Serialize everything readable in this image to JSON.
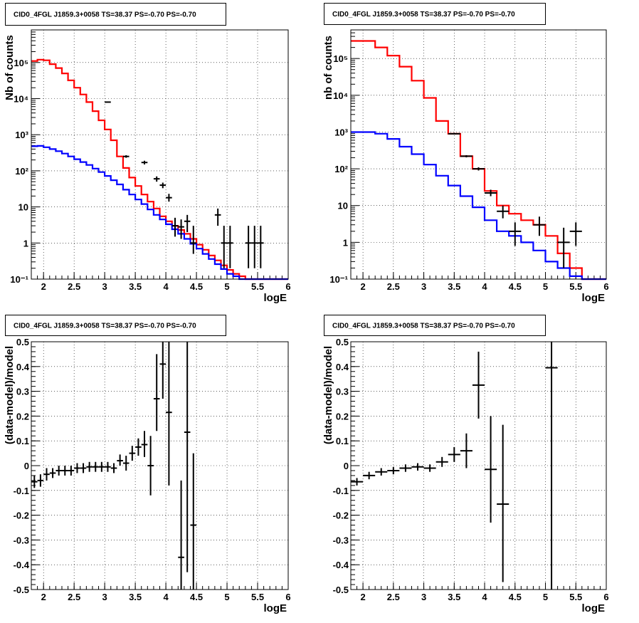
{
  "colors": {
    "data": "#000000",
    "model_total": "#ff0000",
    "model_source": "#0000ff",
    "grid": "#000000",
    "background": "#ffffff"
  },
  "chart_data": [
    {
      "type": "line",
      "title": "CID0_4FGL J1859.3+0058 TS=38.37 PS=-0.70 PS=-0.70",
      "xlabel": "logE",
      "ylabel": "Nb of counts",
      "xlim": [
        1.8,
        6.0
      ],
      "ylim": [
        0.1,
        800000
      ],
      "yscale": "log",
      "grid": true,
      "xticks": [
        "2",
        "2.5",
        "3",
        "3.5",
        "4",
        "4.5",
        "5",
        "5.5",
        "6"
      ],
      "yticks": [
        "10⁻¹",
        "1",
        "10",
        "10²",
        "10³",
        "10⁴",
        "10⁵"
      ],
      "bin_width": 0.1,
      "series": [
        {
          "kind": "step",
          "color": "#ff0000",
          "x": [
            1.8,
            1.9,
            2.0,
            2.1,
            2.2,
            2.3,
            2.4,
            2.5,
            2.6,
            2.7,
            2.8,
            2.9,
            3.0,
            3.1,
            3.2,
            3.3,
            3.4,
            3.5,
            3.6,
            3.7,
            3.8,
            3.9,
            4.0,
            4.1,
            4.2,
            4.3,
            4.4,
            4.5,
            4.6,
            4.7,
            4.8,
            4.9,
            5.0,
            5.1,
            5.2,
            5.3,
            5.4,
            5.5,
            5.6,
            5.7,
            5.8,
            5.9
          ],
          "values": [
            110000,
            120000,
            115000,
            90000,
            70000,
            50000,
            32000,
            20000,
            13000,
            8000,
            4500,
            2500,
            1400,
            700,
            250,
            120,
            65,
            38,
            22,
            14,
            9,
            5.5,
            4,
            3,
            2.3,
            1.8,
            1.3,
            0.9,
            0.65,
            0.45,
            0.33,
            0.24,
            0.18,
            0.14,
            0.12,
            0.1,
            0.1,
            0.1,
            0.1,
            0.1,
            0.1,
            0.1
          ]
        },
        {
          "kind": "step",
          "color": "#0000ff",
          "x": [
            1.8,
            1.9,
            2.0,
            2.1,
            2.2,
            2.3,
            2.4,
            2.5,
            2.6,
            2.7,
            2.8,
            2.9,
            3.0,
            3.1,
            3.2,
            3.3,
            3.4,
            3.5,
            3.6,
            3.7,
            3.8,
            3.9,
            4.0,
            4.1,
            4.2,
            4.3,
            4.4,
            4.5,
            4.6,
            4.7,
            4.8,
            4.9,
            5.0,
            5.1,
            5.2,
            5.3,
            5.4,
            5.5,
            5.6,
            5.7,
            5.8,
            5.9
          ],
          "values": [
            480,
            490,
            450,
            400,
            350,
            300,
            250,
            210,
            175,
            145,
            115,
            92,
            72,
            55,
            42,
            30,
            22,
            16,
            12,
            8.5,
            6,
            4.5,
            3.3,
            2.4,
            1.8,
            1.3,
            0.95,
            0.7,
            0.5,
            0.36,
            0.26,
            0.19,
            0.14,
            0.12,
            0.1,
            0.1,
            0.1,
            0.1,
            0.1,
            0.1,
            0.1,
            0.1
          ]
        },
        {
          "kind": "points",
          "color": "#000000",
          "points": [
            {
              "x": 3.05,
              "y": 8000,
              "lo": 7800,
              "hi": 8200
            },
            {
              "x": 3.35,
              "y": 250,
              "lo": 230,
              "hi": 270
            },
            {
              "x": 3.65,
              "y": 170,
              "lo": 150,
              "hi": 190
            },
            {
              "x": 3.85,
              "y": 60,
              "lo": 50,
              "hi": 70
            },
            {
              "x": 3.95,
              "y": 40,
              "lo": 33,
              "hi": 47
            },
            {
              "x": 4.05,
              "y": 18,
              "lo": 14,
              "hi": 23
            },
            {
              "x": 4.15,
              "y": 3,
              "lo": 1.5,
              "hi": 5
            },
            {
              "x": 4.25,
              "y": 2.8,
              "lo": 1.3,
              "hi": 4.5
            },
            {
              "x": 4.35,
              "y": 4,
              "lo": 2,
              "hi": 6
            },
            {
              "x": 4.45,
              "y": 1,
              "lo": 0.5,
              "hi": 3
            },
            {
              "x": 4.85,
              "y": 6,
              "lo": 3,
              "hi": 9
            },
            {
              "x": 4.95,
              "y": 1,
              "lo": 0.2,
              "hi": 3
            },
            {
              "x": 5.05,
              "y": 1,
              "lo": 0.2,
              "hi": 3
            },
            {
              "x": 5.35,
              "y": 1,
              "lo": 0.2,
              "hi": 3
            },
            {
              "x": 5.45,
              "y": 1,
              "lo": 0.2,
              "hi": 3
            },
            {
              "x": 5.55,
              "y": 1,
              "lo": 0.2,
              "hi": 3
            }
          ]
        }
      ]
    },
    {
      "type": "line",
      "title": "CID0_4FGL J1859.3+0058 TS=38.37 PS=-0.70 PS=-0.70",
      "xlabel": "logE",
      "ylabel": "nb of counts",
      "xlim": [
        1.8,
        6.0
      ],
      "ylim": [
        0.1,
        600000
      ],
      "yscale": "log",
      "grid": true,
      "xticks": [
        "2",
        "2.5",
        "3",
        "3.5",
        "4",
        "4.5",
        "5",
        "5.5",
        "6"
      ],
      "yticks": [
        "10⁻¹",
        "1",
        "10",
        "10²",
        "10³",
        "10⁴",
        "10⁵"
      ],
      "bin_width": 0.2,
      "series": [
        {
          "kind": "step",
          "color": "#ff0000",
          "x": [
            1.8,
            2.0,
            2.2,
            2.4,
            2.6,
            2.8,
            3.0,
            3.2,
            3.4,
            3.6,
            3.8,
            4.0,
            4.2,
            4.4,
            4.6,
            4.8,
            5.0,
            5.2,
            5.4,
            5.6,
            5.8
          ],
          "values": [
            300000,
            300000,
            200000,
            120000,
            60000,
            25000,
            8500,
            2000,
            900,
            220,
            100,
            25,
            10,
            6,
            4,
            3,
            1.5,
            0.5,
            0.2,
            0.1,
            0.1
          ]
        },
        {
          "kind": "step",
          "color": "#0000ff",
          "x": [
            1.8,
            2.0,
            2.2,
            2.4,
            2.6,
            2.8,
            3.0,
            3.2,
            3.4,
            3.6,
            3.8,
            4.0,
            4.2,
            4.4,
            4.6,
            4.8,
            5.0,
            5.2,
            5.4,
            5.6,
            5.8
          ],
          "values": [
            1000,
            1000,
            900,
            650,
            400,
            250,
            130,
            65,
            35,
            18,
            9,
            4,
            2,
            1.5,
            1,
            0.6,
            0.3,
            0.2,
            0.12,
            0.1,
            0.1
          ]
        },
        {
          "kind": "points",
          "color": "#000000",
          "points": [
            {
              "x": 3.5,
              "y": 900,
              "lo": 860,
              "hi": 940
            },
            {
              "x": 3.7,
              "y": 220,
              "lo": 205,
              "hi": 235
            },
            {
              "x": 3.9,
              "y": 100,
              "lo": 90,
              "hi": 110
            },
            {
              "x": 4.1,
              "y": 22,
              "lo": 18,
              "hi": 27
            },
            {
              "x": 4.3,
              "y": 7,
              "lo": 4.5,
              "hi": 10
            },
            {
              "x": 4.5,
              "y": 2,
              "lo": 0.8,
              "hi": 3.5
            },
            {
              "x": 4.9,
              "y": 3,
              "lo": 1.5,
              "hi": 5
            },
            {
              "x": 5.3,
              "y": 1,
              "lo": 0.2,
              "hi": 2.5
            },
            {
              "x": 5.5,
              "y": 2,
              "lo": 0.8,
              "hi": 3.5
            }
          ]
        }
      ]
    },
    {
      "type": "scatter",
      "title": "CID0_4FGL J1859.3+0058 TS=38.37 PS=-0.70 PS=-0.70",
      "xlabel": "logE",
      "ylabel": "(data-model)/model",
      "xlim": [
        1.8,
        6.0
      ],
      "ylim": [
        -0.5,
        0.5
      ],
      "grid": true,
      "xticks": [
        "2",
        "2.5",
        "3",
        "3.5",
        "4",
        "4.5",
        "5",
        "5.5",
        "6"
      ],
      "yticks": [
        "-0.5",
        "-0.4",
        "-0.3",
        "-0.2",
        "-0.1",
        "0",
        "0.1",
        "0.2",
        "0.3",
        "0.4",
        "0.5"
      ],
      "bin_width": 0.1,
      "series": [
        {
          "kind": "points",
          "color": "#000000",
          "points": [
            {
              "x": 1.85,
              "y": -0.065,
              "lo": -0.09,
              "hi": -0.04
            },
            {
              "x": 1.95,
              "y": -0.06,
              "lo": -0.085,
              "hi": -0.035
            },
            {
              "x": 2.05,
              "y": -0.035,
              "lo": -0.06,
              "hi": -0.01
            },
            {
              "x": 2.15,
              "y": -0.03,
              "lo": -0.05,
              "hi": -0.01
            },
            {
              "x": 2.25,
              "y": -0.02,
              "lo": -0.04,
              "hi": 0.0
            },
            {
              "x": 2.35,
              "y": -0.02,
              "lo": -0.04,
              "hi": 0.0
            },
            {
              "x": 2.45,
              "y": -0.02,
              "lo": -0.04,
              "hi": 0.0
            },
            {
              "x": 2.55,
              "y": -0.01,
              "lo": -0.03,
              "hi": 0.01
            },
            {
              "x": 2.65,
              "y": -0.01,
              "lo": -0.03,
              "hi": 0.01
            },
            {
              "x": 2.75,
              "y": -0.005,
              "lo": -0.025,
              "hi": 0.015
            },
            {
              "x": 2.85,
              "y": -0.005,
              "lo": -0.025,
              "hi": 0.015
            },
            {
              "x": 2.95,
              "y": -0.005,
              "lo": -0.025,
              "hi": 0.015
            },
            {
              "x": 3.05,
              "y": -0.005,
              "lo": -0.025,
              "hi": 0.015
            },
            {
              "x": 3.15,
              "y": -0.01,
              "lo": -0.03,
              "hi": 0.01
            },
            {
              "x": 3.25,
              "y": 0.02,
              "lo": 0.0,
              "hi": 0.045
            },
            {
              "x": 3.35,
              "y": 0.01,
              "lo": -0.02,
              "hi": 0.04
            },
            {
              "x": 3.45,
              "y": 0.05,
              "lo": 0.02,
              "hi": 0.08
            },
            {
              "x": 3.55,
              "y": 0.075,
              "lo": 0.04,
              "hi": 0.11
            },
            {
              "x": 3.65,
              "y": 0.085,
              "lo": 0.035,
              "hi": 0.14
            },
            {
              "x": 3.75,
              "y": 0.0,
              "lo": -0.12,
              "hi": 0.12
            },
            {
              "x": 3.85,
              "y": 0.27,
              "lo": 0.14,
              "hi": 0.45
            },
            {
              "x": 3.95,
              "y": 0.41,
              "lo": 0.27,
              "hi": 0.5
            },
            {
              "x": 4.05,
              "y": 0.215,
              "lo": -0.08,
              "hi": 0.5
            },
            {
              "x": 4.25,
              "y": -0.37,
              "lo": -0.5,
              "hi": -0.06
            },
            {
              "x": 4.35,
              "y": 0.135,
              "lo": -0.43,
              "hi": 0.5
            },
            {
              "x": 4.45,
              "y": -0.24,
              "lo": -0.5,
              "hi": 0.05
            }
          ]
        }
      ]
    },
    {
      "type": "scatter",
      "title": "CID0_4FGL J1859.3+0058 TS=38.37 PS=-0.70 PS=-0.70",
      "xlabel": "logE",
      "ylabel": "(data-model)/model",
      "xlim": [
        1.8,
        6.0
      ],
      "ylim": [
        -0.5,
        0.5
      ],
      "grid": true,
      "xticks": [
        "2",
        "2.5",
        "3",
        "3.5",
        "4",
        "4.5",
        "5",
        "5.5",
        "6"
      ],
      "yticks": [
        "-0.5",
        "-0.4",
        "-0.3",
        "-0.2",
        "-0.1",
        "0",
        "0.1",
        "0.2",
        "0.3",
        "0.4",
        "0.5"
      ],
      "bin_width": 0.2,
      "series": [
        {
          "kind": "points",
          "color": "#000000",
          "points": [
            {
              "x": 1.9,
              "y": -0.065,
              "lo": -0.08,
              "hi": -0.05
            },
            {
              "x": 2.1,
              "y": -0.04,
              "lo": -0.055,
              "hi": -0.025
            },
            {
              "x": 2.3,
              "y": -0.025,
              "lo": -0.04,
              "hi": -0.01
            },
            {
              "x": 2.5,
              "y": -0.02,
              "lo": -0.035,
              "hi": -0.005
            },
            {
              "x": 2.7,
              "y": -0.01,
              "lo": -0.025,
              "hi": 0.005
            },
            {
              "x": 2.9,
              "y": -0.005,
              "lo": -0.02,
              "hi": 0.01
            },
            {
              "x": 3.1,
              "y": -0.01,
              "lo": -0.025,
              "hi": 0.005
            },
            {
              "x": 3.3,
              "y": 0.015,
              "lo": -0.005,
              "hi": 0.035
            },
            {
              "x": 3.5,
              "y": 0.045,
              "lo": 0.015,
              "hi": 0.075
            },
            {
              "x": 3.7,
              "y": 0.06,
              "lo": -0.01,
              "hi": 0.13
            },
            {
              "x": 3.9,
              "y": 0.325,
              "lo": 0.19,
              "hi": 0.46
            },
            {
              "x": 4.1,
              "y": -0.015,
              "lo": -0.23,
              "hi": 0.2
            },
            {
              "x": 4.3,
              "y": -0.155,
              "lo": -0.47,
              "hi": 0.165
            },
            {
              "x": 5.1,
              "y": 0.395,
              "lo": -0.5,
              "hi": 0.5
            }
          ]
        }
      ]
    }
  ]
}
